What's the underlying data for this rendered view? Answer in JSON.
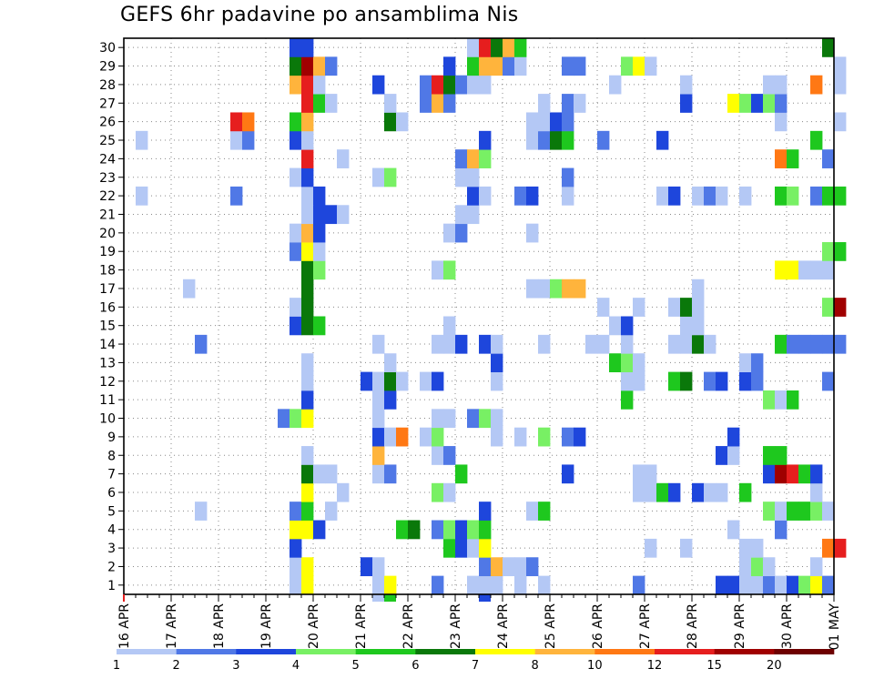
{
  "chart_data": {
    "type": "heatmap",
    "title": "GEFS 6hr padavine po ansamblima Nis",
    "x_tick_labels": [
      "16 APR",
      "17 APR",
      "18 APR",
      "19 APR",
      "20 APR",
      "21 APR",
      "22 APR",
      "23 APR",
      "24 APR",
      "25 APR",
      "26 APR",
      "27 APR",
      "28 APR",
      "29 APR",
      "30 APR",
      "01 MAY"
    ],
    "y_tick_labels": [
      "1",
      "2",
      "3",
      "4",
      "5",
      "6",
      "7",
      "8",
      "9",
      "10",
      "11",
      "12",
      "13",
      "14",
      "15",
      "16",
      "17",
      "18",
      "19",
      "20",
      "21",
      "22",
      "23",
      "24",
      "25",
      "26",
      "27",
      "28",
      "29",
      "30"
    ],
    "xlim": [
      0,
      15
    ],
    "ylim": [
      0.5,
      30.5
    ],
    "x_unit": "days since 16 APR 00Z (6-hourly columns)",
    "grid": true,
    "legend": {
      "placement": "bottom",
      "boundaries": [
        "1",
        "2",
        "3",
        "4",
        "5",
        "6",
        "7",
        "8",
        "10",
        "12",
        "15",
        "20"
      ],
      "colors": [
        "#b4c8f5",
        "#5078e6",
        "#1e46dc",
        "#78f064",
        "#1ec81e",
        "#0a780a",
        "#ffff00",
        "#ffb43c",
        "#ff7814",
        "#e61e1e",
        "#a00000",
        "#6e0000"
      ]
    },
    "levels": [
      {
        "name": "1-2",
        "color": "#b4c8f5"
      },
      {
        "name": "2-3",
        "color": "#5078e6"
      },
      {
        "name": "3-4",
        "color": "#1e46dc"
      },
      {
        "name": "4-5",
        "color": "#78f064"
      },
      {
        "name": "5-6",
        "color": "#1ec81e"
      },
      {
        "name": "6-7",
        "color": "#0a780a"
      },
      {
        "name": "7-8",
        "color": "#ffff00"
      },
      {
        "name": "8-10",
        "color": "#ffb43c"
      },
      {
        "name": "10-12",
        "color": "#ff7814"
      },
      {
        "name": "12-15",
        "color": "#e61e1e"
      },
      {
        "name": "15-20",
        "color": "#a00000"
      },
      {
        "name": ">20",
        "color": "#6e0000"
      }
    ],
    "rows": {
      "30": [
        [
          15,
          3
        ],
        [
          16,
          3
        ],
        [
          30,
          1
        ],
        [
          31,
          10
        ],
        [
          32,
          6
        ],
        [
          33,
          8
        ],
        [
          34,
          5
        ],
        [
          60,
          6
        ]
      ],
      "29": [
        [
          15,
          6
        ],
        [
          16,
          11
        ],
        [
          17,
          8
        ],
        [
          18,
          2
        ],
        [
          28,
          3
        ],
        [
          30,
          5
        ],
        [
          31,
          8
        ],
        [
          32,
          8
        ],
        [
          33,
          2
        ],
        [
          34,
          1
        ],
        [
          38,
          2
        ],
        [
          39,
          2
        ],
        [
          43,
          4
        ],
        [
          44,
          7
        ],
        [
          45,
          1
        ],
        [
          61,
          1
        ]
      ],
      "28": [
        [
          15,
          8
        ],
        [
          16,
          10
        ],
        [
          17,
          1
        ],
        [
          22,
          3
        ],
        [
          26,
          2
        ],
        [
          27,
          10
        ],
        [
          28,
          6
        ],
        [
          29,
          2
        ],
        [
          30,
          1
        ],
        [
          31,
          1
        ],
        [
          42,
          1
        ],
        [
          48,
          1
        ],
        [
          55,
          1
        ],
        [
          56,
          1
        ],
        [
          59,
          9
        ],
        [
          61,
          1
        ]
      ],
      "27": [
        [
          16,
          10
        ],
        [
          17,
          5
        ],
        [
          18,
          1
        ],
        [
          23,
          1
        ],
        [
          26,
          2
        ],
        [
          27,
          8
        ],
        [
          28,
          2
        ],
        [
          36,
          1
        ],
        [
          38,
          2
        ],
        [
          39,
          1
        ],
        [
          48,
          3
        ],
        [
          52,
          7
        ],
        [
          53,
          4
        ],
        [
          54,
          3
        ],
        [
          55,
          4
        ],
        [
          56,
          2
        ]
      ],
      "26": [
        [
          10,
          10
        ],
        [
          11,
          9
        ],
        [
          15,
          5
        ],
        [
          16,
          8
        ],
        [
          23,
          6
        ],
        [
          24,
          1
        ],
        [
          35,
          1
        ],
        [
          36,
          1
        ],
        [
          37,
          3
        ],
        [
          38,
          2
        ],
        [
          56,
          1
        ],
        [
          61,
          1
        ]
      ],
      "25": [
        [
          2,
          1
        ],
        [
          10,
          1
        ],
        [
          11,
          2
        ],
        [
          15,
          3
        ],
        [
          16,
          1
        ],
        [
          31,
          3
        ],
        [
          35,
          1
        ],
        [
          36,
          2
        ],
        [
          37,
          6
        ],
        [
          38,
          5
        ],
        [
          41,
          2
        ],
        [
          46,
          3
        ],
        [
          59,
          5
        ]
      ],
      "24": [
        [
          16,
          10
        ],
        [
          19,
          1
        ],
        [
          29,
          2
        ],
        [
          30,
          8
        ],
        [
          31,
          4
        ],
        [
          56,
          9
        ],
        [
          57,
          5
        ],
        [
          60,
          2
        ]
      ],
      "23": [
        [
          15,
          1
        ],
        [
          16,
          3
        ],
        [
          22,
          1
        ],
        [
          23,
          4
        ],
        [
          29,
          1
        ],
        [
          30,
          1
        ],
        [
          38,
          2
        ]
      ],
      "22": [
        [
          2,
          1
        ],
        [
          10,
          2
        ],
        [
          16,
          1
        ],
        [
          17,
          3
        ],
        [
          30,
          3
        ],
        [
          31,
          1
        ],
        [
          34,
          2
        ],
        [
          35,
          3
        ],
        [
          38,
          1
        ],
        [
          46,
          1
        ],
        [
          47,
          3
        ],
        [
          49,
          1
        ],
        [
          50,
          2
        ],
        [
          51,
          1
        ],
        [
          53,
          1
        ],
        [
          56,
          5
        ],
        [
          57,
          4
        ],
        [
          59,
          2
        ],
        [
          60,
          5
        ],
        [
          61,
          5
        ]
      ],
      "21": [
        [
          16,
          1
        ],
        [
          17,
          3
        ],
        [
          18,
          3
        ],
        [
          19,
          1
        ],
        [
          29,
          1
        ],
        [
          30,
          1
        ]
      ],
      "20": [
        [
          15,
          1
        ],
        [
          16,
          8
        ],
        [
          17,
          3
        ],
        [
          28,
          1
        ],
        [
          29,
          2
        ],
        [
          35,
          1
        ]
      ],
      "19": [
        [
          15,
          2
        ],
        [
          16,
          7
        ],
        [
          17,
          1
        ],
        [
          60,
          4
        ],
        [
          61,
          5
        ]
      ],
      "18": [
        [
          16,
          6
        ],
        [
          17,
          4
        ],
        [
          27,
          1
        ],
        [
          28,
          4
        ],
        [
          56,
          7
        ],
        [
          57,
          7
        ],
        [
          58,
          1
        ],
        [
          59,
          1
        ],
        [
          60,
          1
        ]
      ],
      "17": [
        [
          6,
          1
        ],
        [
          16,
          6
        ],
        [
          35,
          1
        ],
        [
          36,
          1
        ],
        [
          37,
          4
        ],
        [
          38,
          8
        ],
        [
          39,
          8
        ],
        [
          49,
          1
        ]
      ],
      "16": [
        [
          15,
          1
        ],
        [
          16,
          6
        ],
        [
          41,
          1
        ],
        [
          44,
          1
        ],
        [
          47,
          1
        ],
        [
          48,
          6
        ],
        [
          49,
          1
        ],
        [
          60,
          4
        ],
        [
          61,
          11
        ]
      ],
      "15": [
        [
          15,
          3
        ],
        [
          16,
          6
        ],
        [
          17,
          5
        ],
        [
          28,
          1
        ],
        [
          42,
          1
        ],
        [
          43,
          3
        ],
        [
          48,
          1
        ],
        [
          49,
          1
        ]
      ],
      "14": [
        [
          7,
          2
        ],
        [
          22,
          1
        ],
        [
          27,
          1
        ],
        [
          28,
          1
        ],
        [
          29,
          3
        ],
        [
          31,
          3
        ],
        [
          32,
          1
        ],
        [
          36,
          1
        ],
        [
          40,
          1
        ],
        [
          41,
          1
        ],
        [
          43,
          1
        ],
        [
          47,
          1
        ],
        [
          48,
          1
        ],
        [
          49,
          6
        ],
        [
          50,
          1
        ],
        [
          56,
          5
        ],
        [
          57,
          2
        ],
        [
          58,
          2
        ],
        [
          59,
          2
        ],
        [
          60,
          2
        ],
        [
          61,
          2
        ]
      ],
      "13": [
        [
          16,
          1
        ],
        [
          23,
          1
        ],
        [
          32,
          3
        ],
        [
          42,
          5
        ],
        [
          43,
          4
        ],
        [
          44,
          1
        ],
        [
          53,
          1
        ],
        [
          54,
          2
        ]
      ],
      "12": [
        [
          16,
          1
        ],
        [
          21,
          3
        ],
        [
          22,
          1
        ],
        [
          23,
          6
        ],
        [
          24,
          1
        ],
        [
          26,
          1
        ],
        [
          27,
          3
        ],
        [
          32,
          1
        ],
        [
          43,
          1
        ],
        [
          44,
          1
        ],
        [
          47,
          5
        ],
        [
          48,
          6
        ],
        [
          50,
          2
        ],
        [
          51,
          3
        ],
        [
          53,
          3
        ],
        [
          54,
          2
        ],
        [
          60,
          2
        ]
      ],
      "11": [
        [
          16,
          3
        ],
        [
          22,
          1
        ],
        [
          23,
          3
        ],
        [
          43,
          5
        ],
        [
          55,
          4
        ],
        [
          56,
          1
        ],
        [
          57,
          5
        ]
      ],
      "10": [
        [
          14,
          2
        ],
        [
          15,
          4
        ],
        [
          16,
          7
        ],
        [
          22,
          1
        ],
        [
          27,
          1
        ],
        [
          28,
          1
        ],
        [
          30,
          2
        ],
        [
          31,
          4
        ],
        [
          32,
          1
        ]
      ],
      "9": [
        [
          22,
          3
        ],
        [
          23,
          1
        ],
        [
          24,
          9
        ],
        [
          26,
          1
        ],
        [
          27,
          4
        ],
        [
          32,
          1
        ],
        [
          34,
          1
        ],
        [
          36,
          4
        ],
        [
          38,
          2
        ],
        [
          39,
          3
        ],
        [
          52,
          3
        ]
      ],
      "8": [
        [
          16,
          1
        ],
        [
          22,
          8
        ],
        [
          27,
          1
        ],
        [
          28,
          2
        ],
        [
          51,
          3
        ],
        [
          52,
          1
        ],
        [
          55,
          5
        ],
        [
          56,
          5
        ]
      ],
      "7": [
        [
          16,
          6
        ],
        [
          17,
          1
        ],
        [
          18,
          1
        ],
        [
          22,
          1
        ],
        [
          23,
          2
        ],
        [
          29,
          5
        ],
        [
          38,
          3
        ],
        [
          44,
          1
        ],
        [
          45,
          1
        ],
        [
          55,
          3
        ],
        [
          56,
          11
        ],
        [
          57,
          10
        ],
        [
          58,
          5
        ],
        [
          59,
          3
        ]
      ],
      "6": [
        [
          19,
          1
        ],
        [
          16,
          7
        ],
        [
          27,
          4
        ],
        [
          28,
          1
        ],
        [
          44,
          1
        ],
        [
          45,
          1
        ],
        [
          46,
          5
        ],
        [
          47,
          3
        ],
        [
          49,
          3
        ],
        [
          50,
          1
        ],
        [
          51,
          1
        ],
        [
          53,
          5
        ],
        [
          59,
          1
        ]
      ],
      "5": [
        [
          7,
          1
        ],
        [
          15,
          2
        ],
        [
          16,
          5
        ],
        [
          18,
          1
        ],
        [
          31,
          3
        ],
        [
          35,
          1
        ],
        [
          36,
          5
        ],
        [
          55,
          4
        ],
        [
          56,
          1
        ],
        [
          57,
          5
        ],
        [
          58,
          5
        ],
        [
          59,
          4
        ],
        [
          60,
          1
        ]
      ],
      "4": [
        [
          15,
          7
        ],
        [
          16,
          7
        ],
        [
          17,
          3
        ],
        [
          24,
          5
        ],
        [
          25,
          6
        ],
        [
          27,
          2
        ],
        [
          28,
          4
        ],
        [
          29,
          3
        ],
        [
          30,
          4
        ],
        [
          31,
          5
        ],
        [
          52,
          1
        ],
        [
          56,
          2
        ]
      ],
      "3": [
        [
          15,
          3
        ],
        [
          28,
          5
        ],
        [
          29,
          3
        ],
        [
          30,
          1
        ],
        [
          31,
          7
        ],
        [
          45,
          1
        ],
        [
          48,
          1
        ],
        [
          53,
          1
        ],
        [
          54,
          1
        ],
        [
          60,
          9
        ],
        [
          61,
          10
        ]
      ],
      "2": [
        [
          15,
          1
        ],
        [
          16,
          7
        ],
        [
          21,
          3
        ],
        [
          22,
          1
        ],
        [
          31,
          2
        ],
        [
          32,
          8
        ],
        [
          33,
          1
        ],
        [
          34,
          1
        ],
        [
          35,
          2
        ],
        [
          53,
          1
        ],
        [
          54,
          4
        ],
        [
          55,
          1
        ],
        [
          59,
          1
        ]
      ],
      "1": [
        [
          15,
          1
        ],
        [
          16,
          7
        ],
        [
          22,
          1
        ],
        [
          23,
          7
        ],
        [
          27,
          2
        ],
        [
          30,
          1
        ],
        [
          31,
          1
        ],
        [
          32,
          1
        ],
        [
          34,
          1
        ],
        [
          36,
          1
        ],
        [
          44,
          2
        ],
        [
          51,
          3
        ],
        [
          52,
          3
        ],
        [
          53,
          1
        ],
        [
          54,
          1
        ],
        [
          55,
          2
        ],
        [
          56,
          1
        ],
        [
          57,
          3
        ],
        [
          58,
          4
        ],
        [
          59,
          7
        ],
        [
          60,
          2
        ]
      ]
    },
    "edge_marks": [
      [
        22,
        0,
        1
      ],
      [
        23,
        0,
        5
      ],
      [
        31,
        0,
        3
      ]
    ]
  }
}
